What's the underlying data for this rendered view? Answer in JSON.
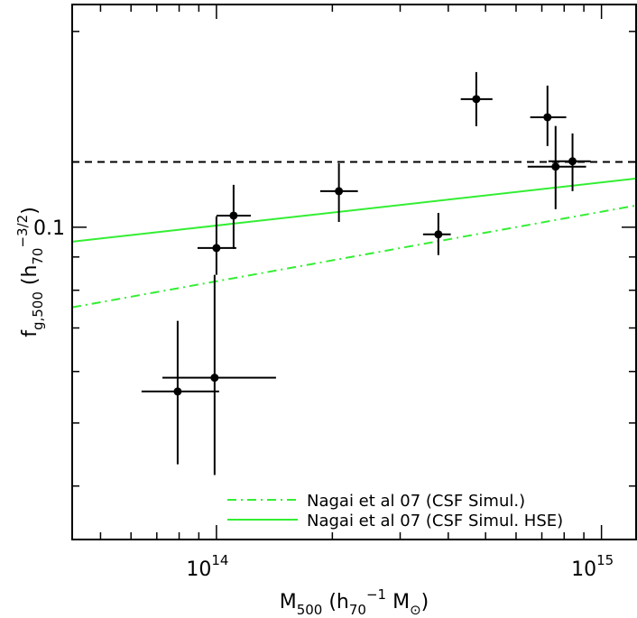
{
  "chart_data": {
    "type": "scatter",
    "log_x": true,
    "log_y": true,
    "xlim": [
      42200000000000.0,
      1230000000000000.0
    ],
    "ylim": [
      0.0331,
      0.22
    ],
    "xticks": [
      {
        "value": 100000000000000.0,
        "label": "10",
        "exponent": "14"
      },
      {
        "value": 1000000000000000.0,
        "label": "10",
        "exponent": "15"
      }
    ],
    "xminor_ticks": [
      50000000000000.0,
      60000000000000.0,
      70000000000000.0,
      80000000000000.0,
      90000000000000.0,
      200000000000000.0,
      300000000000000.0,
      400000000000000.0,
      500000000000000.0,
      600000000000000.0,
      700000000000000.0,
      800000000000000.0,
      900000000000000.0
    ],
    "yticks": [
      {
        "value": 0.1,
        "label": "0.1"
      }
    ],
    "yminor_ticks": [
      0.04,
      0.05,
      0.06,
      0.07,
      0.08,
      0.09,
      0.2
    ],
    "xlabel": [
      {
        "text": "M"
      },
      {
        "text": "500",
        "shift": "sub"
      },
      {
        "text": " (h"
      },
      {
        "text": "70",
        "shift": "sub"
      },
      {
        "text": "−1",
        "shift": "super"
      },
      {
        "text": " M"
      },
      {
        "text": "⊙",
        "shift": "sub"
      },
      {
        "text": ")"
      }
    ],
    "ylabel": [
      {
        "text": "f"
      },
      {
        "text": "g,500",
        "shift": "sub"
      },
      {
        "text": " (h"
      },
      {
        "text": "70",
        "shift": "sub"
      },
      {
        "text": "−3/2",
        "shift": "super"
      },
      {
        "text": ")"
      }
    ],
    "points": {
      "color": "#000000",
      "x": [
        79300000000000.0,
        98900000000000.0,
        100000000000000.0,
        110800000000000.0,
        208000000000000.0,
        377000000000000.0,
        473000000000000.0,
        724000000000000.0,
        760000000000000.0,
        841000000000000.0
      ],
      "values": [
        0.0559,
        0.0587,
        0.0929,
        0.1042,
        0.1136,
        0.0975,
        0.1574,
        0.1476,
        0.1239,
        0.1263
      ],
      "xlow": [
        63900000000000.0,
        72400000000000.0,
        89300000000000.0,
        100000000000000.0,
        186000000000000.0,
        344000000000000.0,
        431000000000000.0,
        653000000000000.0,
        643000000000000.0,
        728000000000000.0
      ],
      "xhigh": [
        101600000000000.0,
        142800000000000.0,
        112600000000000.0,
        122800000000000.0,
        233000000000000.0,
        406000000000000.0,
        521000000000000.0,
        810000000000000.0,
        912000000000000.0,
        937000000000000.0
      ],
      "ylow": [
        0.0432,
        0.0416,
        0.0845,
        0.0926,
        0.1019,
        0.0906,
        0.143,
        0.1333,
        0.1066,
        0.1136
      ],
      "yhigh": [
        0.0718,
        0.0845,
        0.1039,
        0.1162,
        0.1254,
        0.1052,
        0.1732,
        0.1651,
        0.1431,
        0.1394
      ]
    },
    "reference_line": {
      "value": 0.126,
      "color": "#000000",
      "dash": "dashed"
    },
    "series": [
      {
        "name": "Nagai et al 07 (CSF Simul.)",
        "color": "#33ee33",
        "dash": "dashdot",
        "x": [
          42200000000000.0,
          1230000000000000.0
        ],
        "values": [
          0.0753,
          0.108
        ]
      },
      {
        "name": "Nagai et al 07 (CSF Simul. HSE)",
        "color": "#33ee33",
        "dash": "solid",
        "x": [
          42200000000000.0,
          1230000000000000.0
        ],
        "values": [
          0.095,
          0.1188
        ]
      }
    ],
    "legend": "lower-right"
  }
}
